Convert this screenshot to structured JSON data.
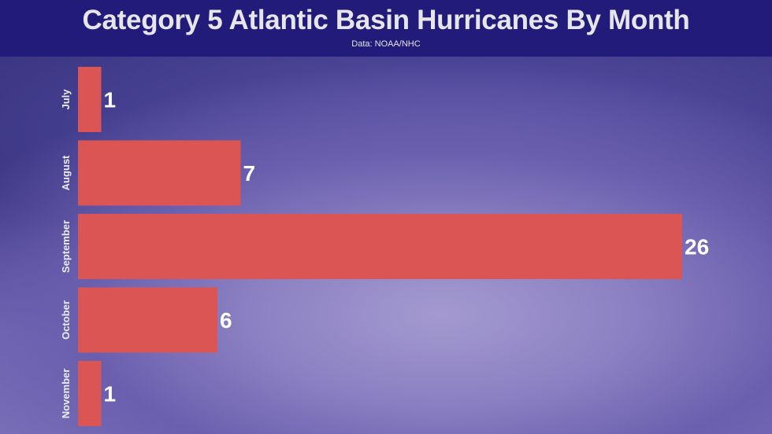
{
  "chart_data": {
    "type": "bar",
    "orientation": "horizontal",
    "title": "Category 5 Atlantic Basin Hurricanes By Month",
    "subtitle": "Data: NOAA/NHC",
    "categories": [
      "July",
      "August",
      "September",
      "October",
      "November"
    ],
    "values": [
      1,
      7,
      26,
      6,
      1
    ],
    "xlim": [
      0,
      26
    ],
    "grid": false,
    "legend": "none",
    "bar_color": "#dc5555",
    "header_color": "#221b79"
  }
}
